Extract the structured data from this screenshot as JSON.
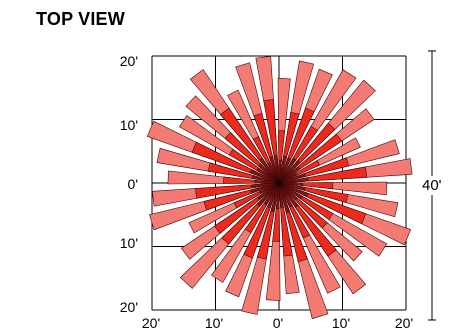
{
  "title": "TOP VIEW",
  "axis": {
    "y_ticks": [
      "20'",
      "10'",
      "0'",
      "10'",
      "20'"
    ],
    "x_ticks": [
      "20'",
      "10'",
      "0'",
      "10'",
      "20'"
    ]
  },
  "dimension_label": "40'",
  "colors": {
    "outer": "#f47a74",
    "middle": "#ee2a1e",
    "inner": "#8a1210",
    "grid": "#000000"
  },
  "rays": {
    "count": 36,
    "outer_lengths": [
      16.5,
      19.5,
      19,
      20.5,
      21,
      18,
      14,
      19.5,
      21,
      17,
      19,
      22,
      19.5,
      17,
      21,
      19,
      22,
      17.5,
      18.5,
      21,
      19,
      18,
      21.5,
      18.5,
      15.5,
      21,
      20,
      17.5,
      19.5,
      22,
      18,
      19,
      21.5,
      16,
      19.5,
      20
    ]
  }
}
